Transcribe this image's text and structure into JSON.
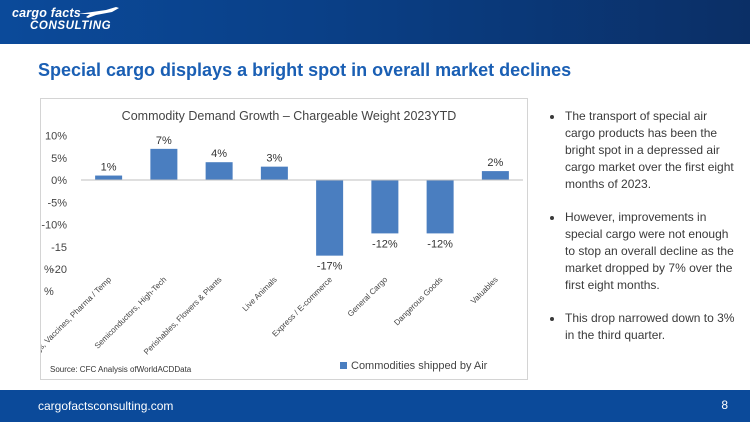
{
  "header": {
    "logo_line1": "cargo facts",
    "logo_line2": "CONSULTING",
    "logo_icon": "airplane-icon"
  },
  "slide": {
    "title": "Special cargo displays a bright spot in overall market declines"
  },
  "bullets": [
    "The transport of special air cargo products has been the bright spot in a depressed air cargo market over the first eight months of 2023.",
    "However, improvements in special cargo were not enough to stop an overall decline as the market dropped by 7% over the first eight months.",
    "This drop narrowed down to 3% in the third quarter."
  ],
  "footer": {
    "url": "cargofactsconsulting.com",
    "page": "8"
  },
  "colors": {
    "bar": "#4a7ec0",
    "title": "#1a5fb4",
    "brand_bar": "#0b4a9a"
  },
  "chart_data": {
    "type": "bar",
    "title": "Commodity Demand Growth – Chargeable Weight 2023YTD",
    "categories": [
      "Drugs, Vaccines, Pharma / Temp",
      "Semiconductors, High-Tech",
      "Perishables, Flowers & Plants",
      "Live Animals",
      "Express / E-commerce",
      "General Cargo",
      "Dangerous Goods",
      "Valuables"
    ],
    "series": [
      {
        "name": "Commodities shipped by Air",
        "values": [
          1,
          7,
          4,
          3,
          -17,
          -12,
          -12,
          2
        ]
      }
    ],
    "data_labels": [
      "1%",
      "7%",
      "4%",
      "3%",
      "-17%",
      "-12%",
      "-12%",
      "2%"
    ],
    "y_ticks": [
      {
        "value": 10,
        "label": "10%"
      },
      {
        "value": 5,
        "label": "5%"
      },
      {
        "value": 0,
        "label": "0%"
      },
      {
        "value": -5,
        "label": "-5%"
      },
      {
        "value": -10,
        "label": "-10%"
      },
      {
        "value": -15,
        "label": "-15"
      },
      {
        "value": -20,
        "label": "-20"
      }
    ],
    "y_extra_labels": [
      "%",
      "%"
    ],
    "ylim": [
      -20,
      10
    ],
    "grid": false,
    "legend": "bottom-right",
    "source": "Source: CFC Analysis ofWorldACDData"
  }
}
